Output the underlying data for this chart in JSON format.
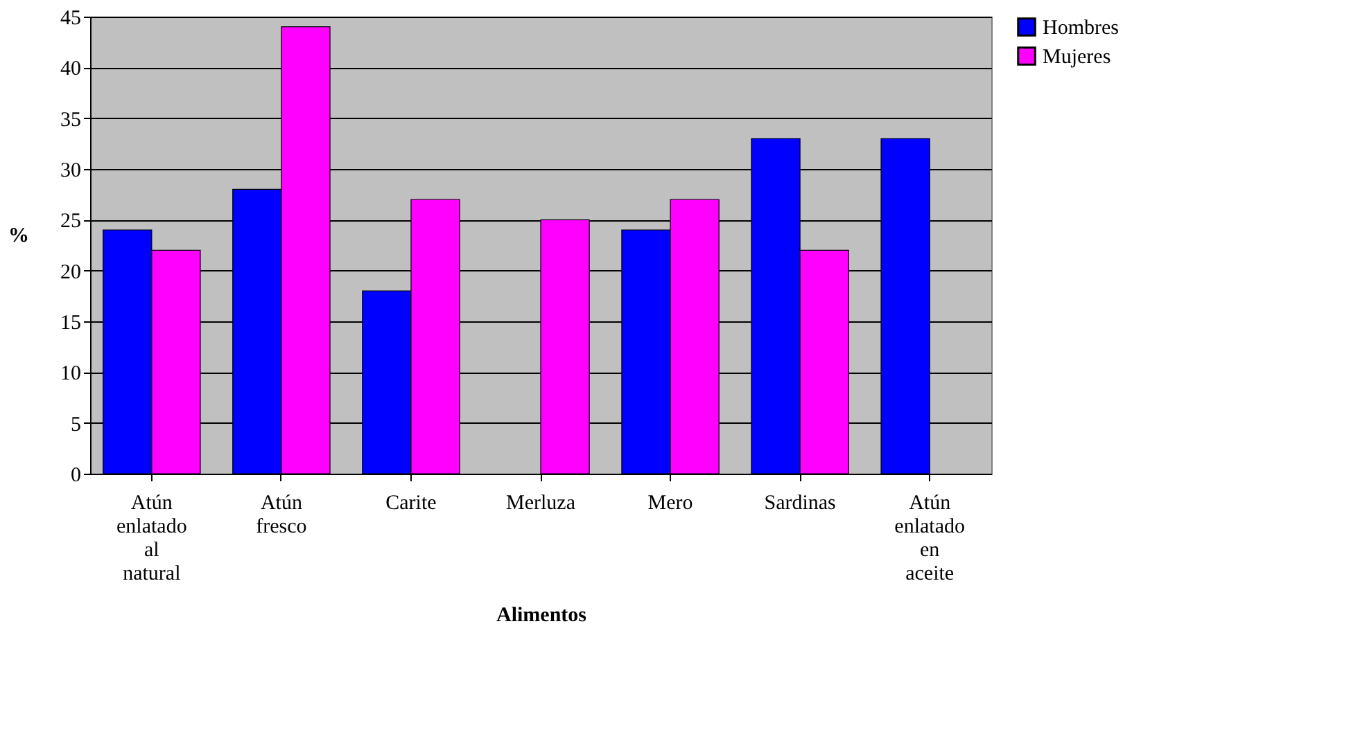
{
  "chart_data": {
    "type": "bar",
    "xlabel": "Alimentos",
    "ylabel": "%",
    "categories": [
      "Atún enlatado al natural",
      "Atún fresco",
      "Carite",
      "Merluza",
      "Mero",
      "Sardinas",
      "Atún enlatado en aceite"
    ],
    "series": [
      {
        "name": "Hombres",
        "color": "#0000ff",
        "values": [
          24,
          28,
          18,
          null,
          24,
          33,
          33
        ]
      },
      {
        "name": "Mujeres",
        "color": "#ff00ff",
        "values": [
          22,
          44,
          27,
          25,
          27,
          22,
          null
        ]
      }
    ],
    "ylim": [
      0,
      45
    ],
    "yticks": [
      0,
      5,
      10,
      15,
      20,
      25,
      30,
      35,
      40,
      45
    ],
    "grid": "y",
    "legend": "right"
  }
}
